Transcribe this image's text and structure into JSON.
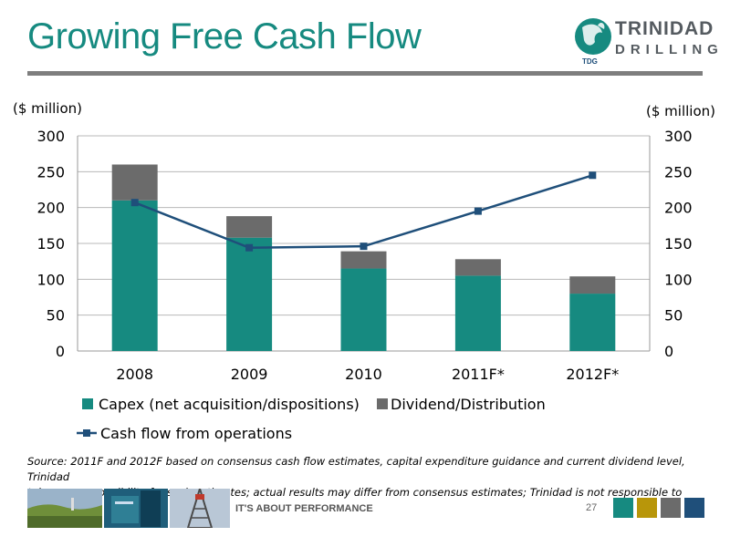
{
  "slide": {
    "title": "Growing Free Cash Flow",
    "unit_left": "($ million)",
    "unit_right": "($ million)",
    "source_line1": "Source: 2011F and 2012F based on consensus cash flow estimates, capital expenditure guidance and current dividend level, Trinidad",
    "source_line2": "takes no responsibility for such estimates; actual results may differ from consensus estimates; Trinidad is not responsible to update",
    "footer_text": "IT'S ABOUT PERFORMANCE",
    "page_number": "27"
  },
  "logo": {
    "word1": "TRINIDAD",
    "word2": "DRILLING",
    "tag": "TDG"
  },
  "colors": {
    "title": "#168a80",
    "capex": "#168a80",
    "dividend": "#6b6b6b",
    "cashflow": "#1f4f7a",
    "footer_squares": [
      "#168a80",
      "#b8960a",
      "#6b6b6b",
      "#1f4f7a"
    ]
  },
  "chart_data": {
    "type": "bar",
    "stacked": true,
    "categories": [
      "2008",
      "2009",
      "2010",
      "2011F*",
      "2012F*"
    ],
    "series": [
      {
        "name": "Capex (net acquisition/dispositions)",
        "kind": "bar",
        "values": [
          210,
          158,
          115,
          105,
          80
        ]
      },
      {
        "name": "Dividend/Distribution",
        "kind": "bar",
        "values": [
          50,
          30,
          24,
          23,
          24
        ]
      },
      {
        "name": "Cash flow from operations",
        "kind": "line",
        "axis": "right",
        "values": [
          207,
          144,
          146,
          195,
          245
        ]
      }
    ],
    "y_left": {
      "min": 0,
      "max": 300,
      "ticks": [
        "0",
        "50",
        "100",
        "150",
        "200",
        "250",
        "300"
      ]
    },
    "y_right": {
      "min": 0,
      "max": 300,
      "ticks": [
        "0",
        "50",
        "100",
        "150",
        "200",
        "250",
        "300"
      ]
    },
    "grid": true,
    "legend_position": "bottom"
  }
}
